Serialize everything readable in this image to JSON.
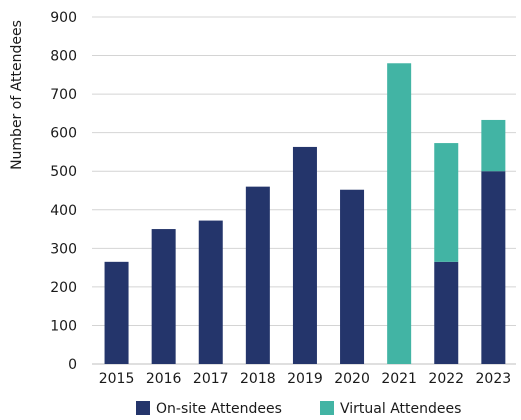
{
  "chart_data": {
    "type": "bar",
    "stacked": true,
    "categories": [
      "2015",
      "2016",
      "2017",
      "2018",
      "2019",
      "2020",
      "2021",
      "2022",
      "2023"
    ],
    "series": [
      {
        "name": "On-site Attendees",
        "color": "#24356b",
        "values": [
          265,
          350,
          372,
          460,
          563,
          452,
          0,
          265,
          500
        ]
      },
      {
        "name": "Virtual Attendees",
        "color": "#42b4a4",
        "values": [
          0,
          0,
          0,
          0,
          0,
          0,
          780,
          308,
          133
        ]
      }
    ],
    "ylabel": "Number of Attendees",
    "ylim": [
      0,
      900
    ],
    "yticks": [
      0,
      100,
      200,
      300,
      400,
      500,
      600,
      700,
      800,
      900
    ],
    "grid": true,
    "legend_position": "bottom"
  }
}
